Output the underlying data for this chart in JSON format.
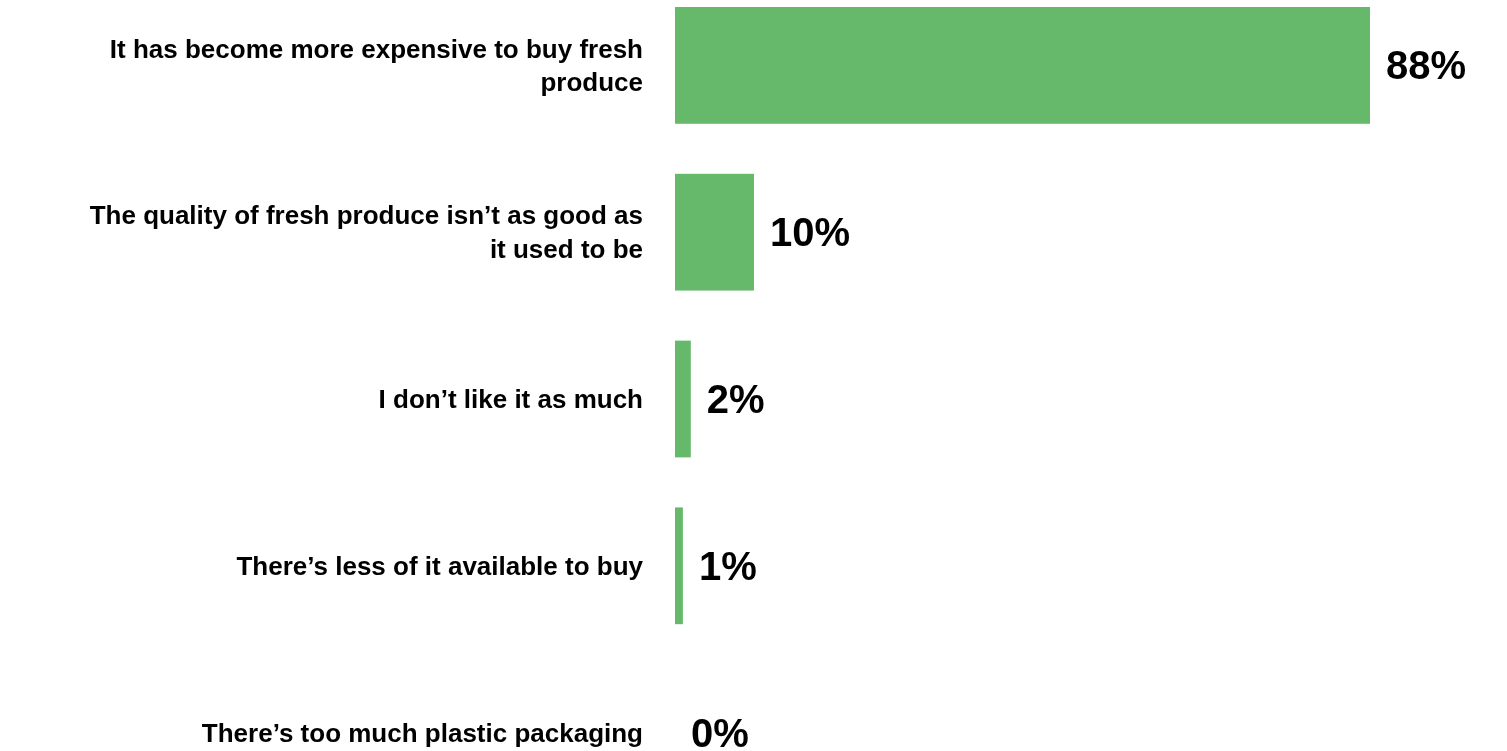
{
  "chart_data": {
    "type": "bar",
    "orientation": "horizontal",
    "categories": [
      "It has become more expensive to buy fresh produce",
      "The quality of fresh produce isn’t as good as it used to be",
      "I don’t like it as much",
      "There’s less of it available to buy",
      "There’s too much plastic packaging"
    ],
    "values": [
      88,
      10,
      2,
      1,
      0
    ],
    "value_labels": [
      "88%",
      "10%",
      "2%",
      "1%",
      "0%"
    ],
    "color": "#66b86b",
    "xlim": [
      0,
      88
    ]
  }
}
